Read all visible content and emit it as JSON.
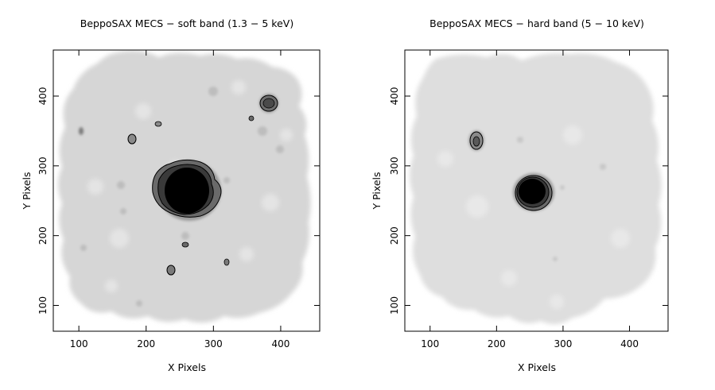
{
  "chart_data": [
    {
      "type": "heatmap",
      "title": "BeppoSAX MECS − soft band (1.3 − 5 keV)",
      "xlabel": "X Pixels",
      "ylabel": "Y Pixels",
      "xlim": [
        62,
        458
      ],
      "ylim": [
        63,
        466
      ],
      "xticks": [
        100,
        200,
        300,
        400
      ],
      "yticks": [
        100,
        200,
        300,
        400
      ],
      "colormap": "greyscale (white = low, black = high)",
      "contours": true,
      "sources": [
        {
          "x": 255,
          "y": 255,
          "intensity": "very strong"
        },
        {
          "x": 384,
          "y": 387,
          "intensity": "strong"
        },
        {
          "x": 172,
          "y": 336,
          "intensity": "medium"
        },
        {
          "x": 103,
          "y": 348,
          "intensity": "weak"
        },
        {
          "x": 218,
          "y": 359,
          "intensity": "weak"
        },
        {
          "x": 357,
          "y": 367,
          "intensity": "weak"
        },
        {
          "x": 238,
          "y": 149,
          "intensity": "medium"
        },
        {
          "x": 320,
          "y": 160,
          "intensity": "weak"
        },
        {
          "x": 260,
          "y": 186,
          "intensity": "weak"
        }
      ]
    },
    {
      "type": "heatmap",
      "title": "BeppoSAX MECS − hard band (5 − 10 keV)",
      "xlabel": "X Pixels",
      "ylabel": "Y Pixels",
      "xlim": [
        62,
        458
      ],
      "ylim": [
        63,
        466
      ],
      "xticks": [
        100,
        200,
        300,
        400
      ],
      "yticks": [
        100,
        200,
        300,
        400
      ],
      "colormap": "greyscale (white = low, black = high)",
      "contours": true,
      "sources": [
        {
          "x": 258,
          "y": 263,
          "intensity": "very strong"
        },
        {
          "x": 172,
          "y": 336,
          "intensity": "medium"
        }
      ]
    }
  ]
}
